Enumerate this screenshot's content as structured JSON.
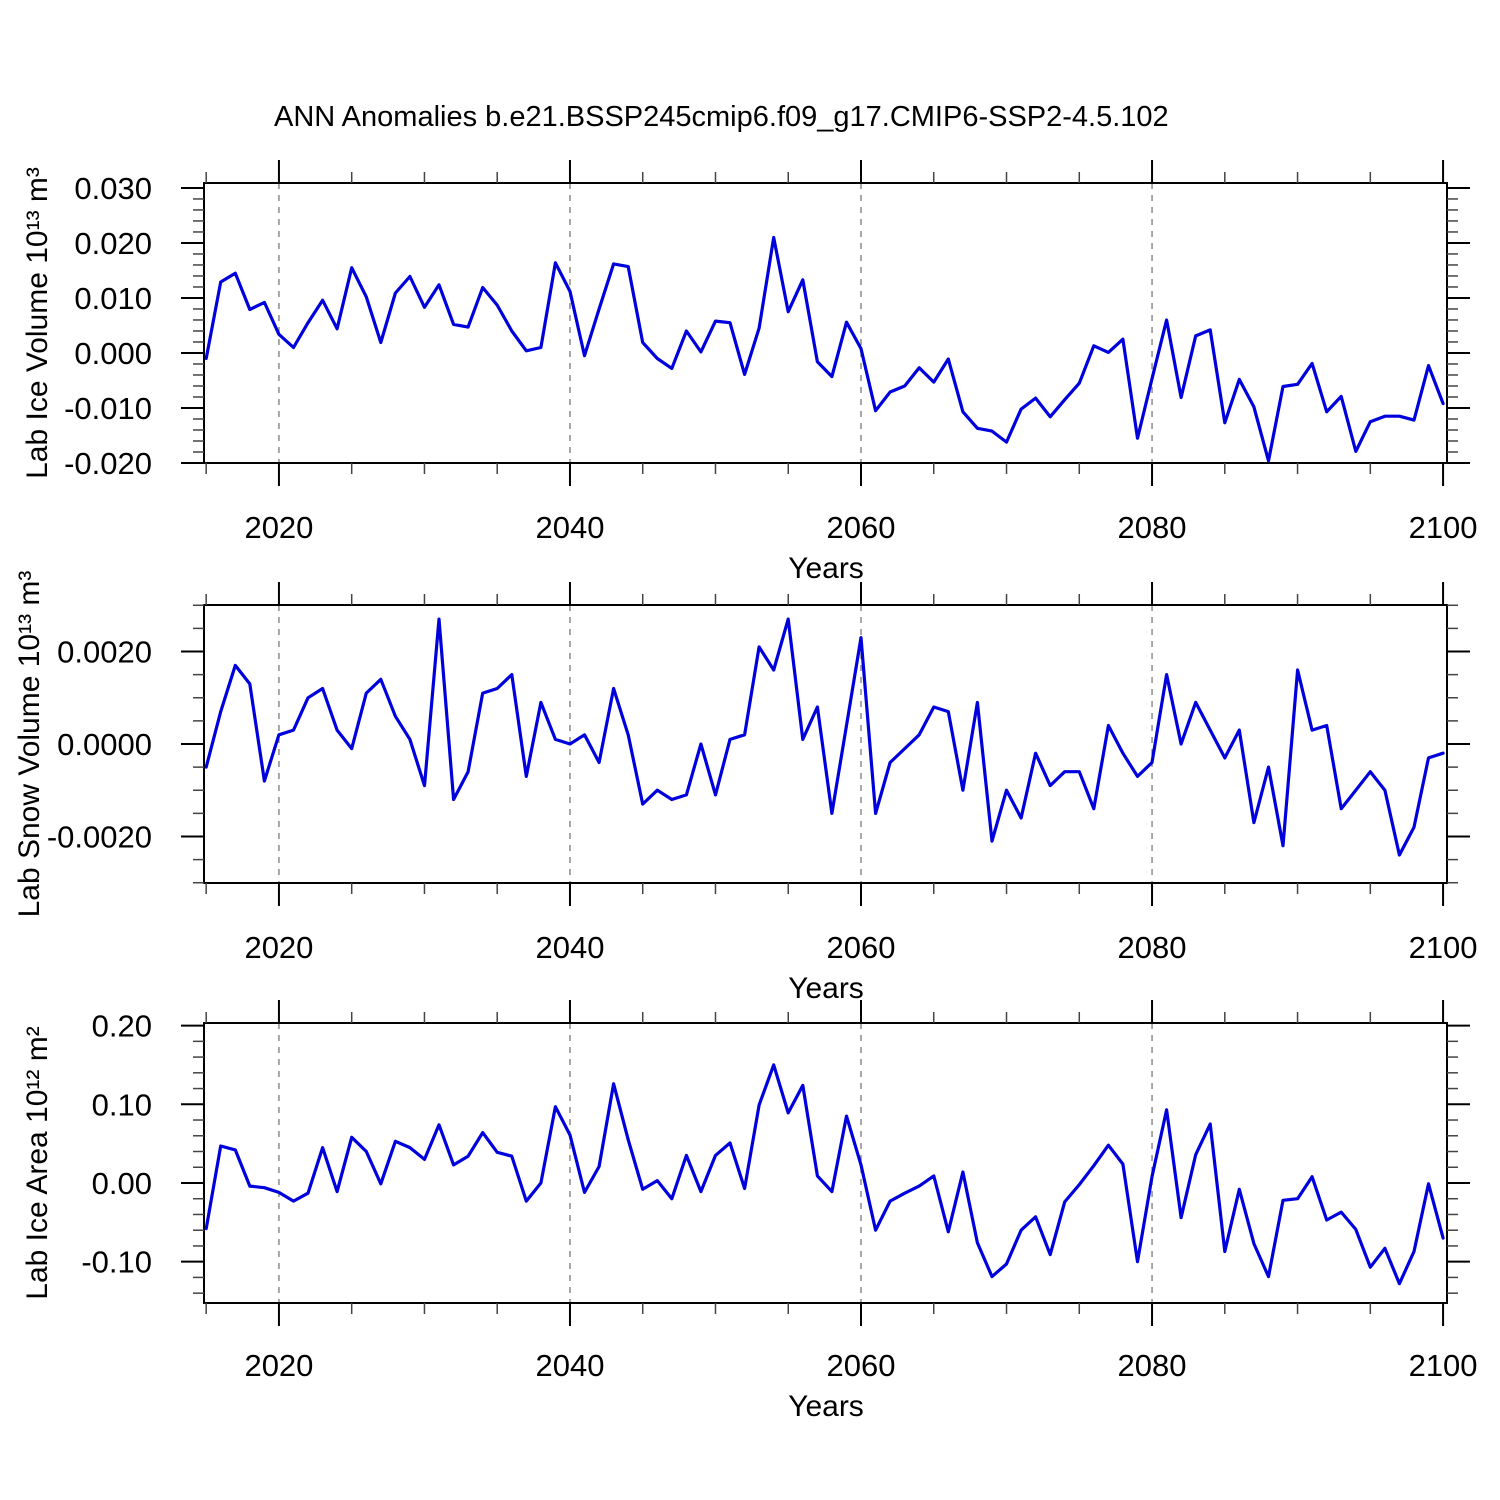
{
  "title": "ANN Anomalies b.e21.BSSP245cmip6.f09_g17.CMIP6-SSP2-4.5.102",
  "style": {
    "line_color": "#0000dd",
    "grid_color": "#7a7a7a",
    "frame_color": "#000000",
    "minor_tick_color": "#444444",
    "text_color": "#000000"
  },
  "x_axis": {
    "label": "Years",
    "tick_years": [
      2020,
      2040,
      2060,
      2080,
      2100
    ],
    "tick_labels": [
      "2020",
      "2040",
      "2060",
      "2080",
      "2100"
    ],
    "minor_step": 5,
    "grid_years": [
      2020,
      2040,
      2060,
      2080
    ]
  },
  "chart_data": [
    {
      "type": "line",
      "name": "lab-ice-volume",
      "ylabel": "Lab Ice Volume 10¹³ m³",
      "xlabel": "Years",
      "x_start": 2015,
      "x_end": 2100,
      "ylim": [
        -0.02,
        0.0309
      ],
      "yticks": {
        "values": [
          0.03,
          0.02,
          0.01,
          0.0,
          -0.01,
          -0.02
        ],
        "labels": [
          "0.030",
          "0.020",
          "0.010",
          "0.000",
          "-0.010",
          "-0.020"
        ]
      },
      "y_minor_step": 0.002,
      "y_major_step": 0.01,
      "values": [
        -0.001,
        0.0129,
        0.0145,
        0.0079,
        0.0092,
        0.0034,
        0.001,
        0.0055,
        0.0096,
        0.0044,
        0.0155,
        0.0102,
        0.0019,
        0.0109,
        0.0139,
        0.0083,
        0.0124,
        0.0052,
        0.0047,
        0.0119,
        0.0087,
        0.004,
        0.0004,
        0.001,
        0.0164,
        0.0112,
        -0.0005,
        0.008,
        0.0162,
        0.0157,
        0.0019,
        -0.001,
        -0.0028,
        0.004,
        0.0002,
        0.0058,
        0.0055,
        -0.0039,
        0.0045,
        0.021,
        0.0075,
        0.0133,
        -0.0016,
        -0.0043,
        0.0056,
        0.0008,
        -0.0105,
        -0.0071,
        -0.006,
        -0.0027,
        -0.0053,
        -0.0011,
        -0.0107,
        -0.0137,
        -0.0142,
        -0.0162,
        -0.0102,
        -0.0082,
        -0.0116,
        -0.0085,
        -0.0055,
        0.0013,
        0.0001,
        0.0025,
        -0.0155,
        -0.0047,
        0.006,
        -0.0081,
        0.0031,
        0.0042,
        -0.0127,
        -0.0048,
        -0.0098,
        -0.0196,
        -0.0061,
        -0.0057,
        -0.0019,
        -0.0107,
        -0.0079,
        -0.0179,
        -0.0125,
        -0.0115,
        -0.0115,
        -0.0122,
        -0.0023,
        -0.0092
      ]
    },
    {
      "type": "line",
      "name": "lab-snow-volume",
      "ylabel": "Lab Snow Volume 10¹³ m³",
      "xlabel": "Years",
      "x_start": 2015,
      "x_end": 2100,
      "ylim": [
        -0.003006,
        0.003006
      ],
      "yticks": {
        "values": [
          0.002,
          0.0,
          -0.002
        ],
        "labels": [
          "0.0020",
          "0.0000",
          "-0.0020"
        ]
      },
      "y_minor_step": 0.0005,
      "y_major_step": 0.002,
      "values": [
        -0.0005,
        0.0007,
        0.0017,
        0.0013,
        -0.0008,
        0.0002,
        0.0003,
        0.001,
        0.0012,
        0.0003,
        -0.0001,
        0.0011,
        0.0014,
        0.0006,
        0.0001,
        -0.0009,
        0.0027,
        -0.0012,
        -0.0006,
        0.0011,
        0.0012,
        0.0015,
        -0.0007,
        0.0009,
        0.0001,
        0.0,
        0.0002,
        -0.0004,
        0.0012,
        0.0002,
        -0.0013,
        -0.001,
        -0.0012,
        -0.0011,
        0.0,
        -0.0011,
        0.0001,
        0.0002,
        0.0021,
        0.0016,
        0.0027,
        0.0001,
        0.0008,
        -0.0015,
        0.0004,
        0.0023,
        -0.0015,
        -0.0004,
        -0.0001,
        0.0002,
        0.0008,
        0.0007,
        -0.001,
        0.0009,
        -0.0021,
        -0.001,
        -0.0016,
        -0.0002,
        -0.0009,
        -0.0006,
        -0.0006,
        -0.0014,
        0.0004,
        -0.0002,
        -0.0007,
        -0.0004,
        0.0015,
        0.0,
        0.0009,
        0.0003,
        -0.0003,
        0.0003,
        -0.0017,
        -0.0005,
        -0.0022,
        0.0016,
        0.0003,
        0.0004,
        -0.0014,
        -0.001,
        -0.0006,
        -0.001,
        -0.0024,
        -0.0018,
        -0.0003,
        -0.0002
      ]
    },
    {
      "type": "line",
      "name": "lab-ice-area",
      "ylabel": "Lab Ice Area 10¹² m²",
      "xlabel": "Years",
      "x_start": 2015,
      "x_end": 2100,
      "ylim": [
        -0.1525,
        0.2033
      ],
      "yticks": {
        "values": [
          0.2,
          0.1,
          0.0,
          -0.1
        ],
        "labels": [
          "0.20",
          "0.10",
          "0.00",
          "-0.10"
        ]
      },
      "y_minor_step": 0.02,
      "y_major_step": 0.1,
      "values": [
        -0.058,
        0.047,
        0.042,
        -0.004,
        -0.006,
        -0.012,
        -0.023,
        -0.013,
        0.045,
        -0.011,
        0.058,
        0.04,
        -0.001,
        0.053,
        0.045,
        0.03,
        0.074,
        0.023,
        0.034,
        0.064,
        0.039,
        0.034,
        -0.023,
        0.0,
        0.097,
        0.061,
        -0.012,
        0.021,
        0.126,
        0.055,
        -0.008,
        0.003,
        -0.02,
        0.035,
        -0.011,
        0.035,
        0.051,
        -0.007,
        0.099,
        0.15,
        0.089,
        0.124,
        0.009,
        -0.011,
        0.085,
        0.023,
        -0.06,
        -0.023,
        -0.013,
        -0.004,
        0.009,
        -0.062,
        0.014,
        -0.076,
        -0.119,
        -0.103,
        -0.06,
        -0.043,
        -0.091,
        -0.024,
        -0.002,
        0.022,
        0.048,
        0.024,
        -0.1,
        0.008,
        0.093,
        -0.044,
        0.036,
        0.075,
        -0.087,
        -0.008,
        -0.077,
        -0.119,
        -0.022,
        -0.02,
        0.008,
        -0.047,
        -0.037,
        -0.059,
        -0.107,
        -0.083,
        -0.128,
        -0.087,
        -0.001,
        -0.07
      ]
    }
  ]
}
